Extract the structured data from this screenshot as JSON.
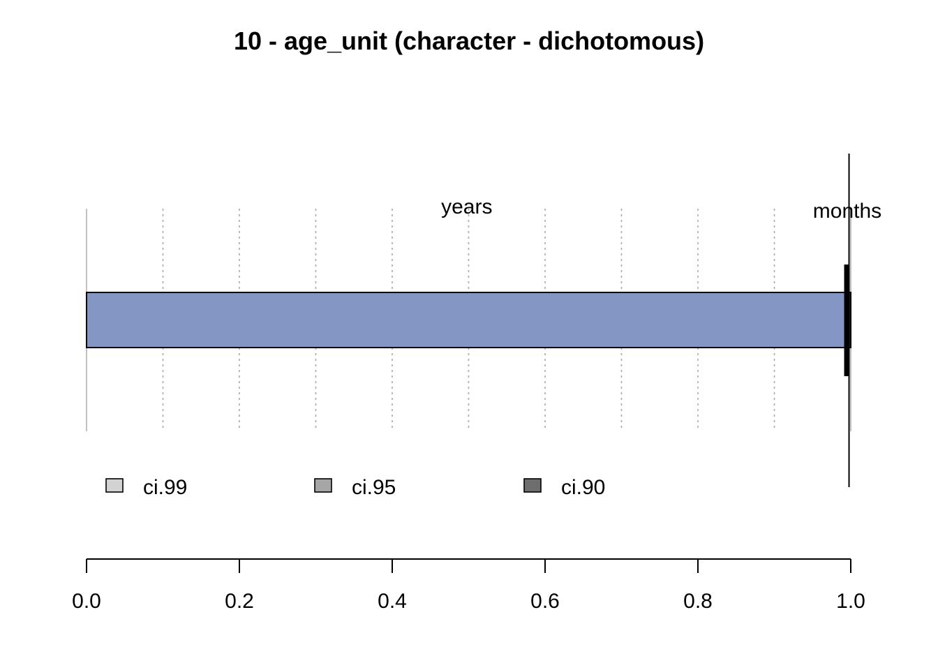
{
  "chart_data": {
    "type": "bar",
    "orientation": "horizontal",
    "stacked": true,
    "title": "10 - age_unit (character - dichotomous)",
    "xlabel": "",
    "ylabel": "",
    "xlim": [
      0,
      1
    ],
    "x_ticks": [
      "0.0",
      "0.2",
      "0.4",
      "0.6",
      "0.8",
      "1.0"
    ],
    "x_tick_values": [
      0,
      0.2,
      0.4,
      0.6,
      0.8,
      1.0
    ],
    "grid": true,
    "categories": [
      {
        "name": "years",
        "value": 0.995,
        "color": "#8496c3"
      },
      {
        "name": "months",
        "value": 0.005,
        "color": "#8b1a1a"
      }
    ],
    "ci_marker": 0.995,
    "legend": {
      "placement": "bottom",
      "entries": [
        {
          "name": "ci.99",
          "color": "#d3d3d3"
        },
        {
          "name": "ci.95",
          "color": "#a6a6a6"
        },
        {
          "name": "ci.90",
          "color": "#6e6e6e"
        }
      ]
    }
  }
}
